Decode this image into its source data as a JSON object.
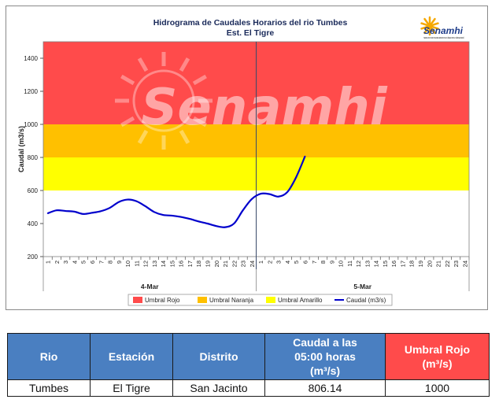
{
  "chart_data": {
    "type": "line",
    "title": "Hidrograma de Caudales Horarios del rio Tumbes",
    "subtitle": "Est. El Tigre",
    "ylabel": "Caudal  (m3/s)",
    "ylim": [
      200,
      1500
    ],
    "yticks": [
      200,
      400,
      600,
      800,
      1000,
      1200,
      1400
    ],
    "day_groups": [
      {
        "label": "4-Mar",
        "hours": [
          "1",
          "2",
          "3",
          "4",
          "5",
          "6",
          "7",
          "8",
          "9",
          "10",
          "11",
          "12",
          "13",
          "14",
          "15",
          "16",
          "17",
          "18",
          "19",
          "20",
          "21",
          "22",
          "23",
          "24"
        ]
      },
      {
        "label": "5-Mar",
        "hours": [
          "1",
          "2",
          "3",
          "4",
          "5",
          "6",
          "7",
          "8",
          "9",
          "10",
          "11",
          "12",
          "13",
          "14",
          "15",
          "16",
          "17",
          "18",
          "19",
          "20",
          "21",
          "22",
          "23",
          "24"
        ]
      }
    ],
    "bands": [
      {
        "name": "Umbral Rojo",
        "from": 1000,
        "to": 1500,
        "color": "#ff4b4b"
      },
      {
        "name": "Umbral Naranja",
        "from": 800,
        "to": 1000,
        "color": "#ffc000"
      },
      {
        "name": "Umbral Amarillo",
        "from": 600,
        "to": 800,
        "color": "#ffff00"
      }
    ],
    "series": [
      {
        "name": "Caudal (m3/s)",
        "color": "#0000cc",
        "values": [
          462,
          480,
          476,
          472,
          458,
          465,
          475,
          495,
          530,
          545,
          535,
          505,
          470,
          452,
          448,
          440,
          428,
          413,
          400,
          385,
          378,
          400,
          480,
          548,
          580,
          578,
          563,
          590,
          680,
          806.14
        ]
      }
    ],
    "legend": {
      "position": "bottom",
      "items": [
        "Umbral Rojo",
        "Umbral Naranja",
        "Umbral Amarillo",
        "Caudal (m3/s)"
      ]
    },
    "grid": false
  },
  "logo": {
    "text": "Senamhi",
    "sub": "SERVICIO NACIONAL DE METEOROLOGÍA E HIDROLOGÍA DEL PERÚ"
  },
  "watermark": {
    "text": "Senamhi"
  },
  "table": {
    "headers": [
      {
        "lines": [
          "Rio"
        ]
      },
      {
        "lines": [
          "Estación"
        ]
      },
      {
        "lines": [
          "Distrito"
        ]
      },
      {
        "lines": [
          "Caudal a las",
          "05:00 horas",
          "(m³/s)"
        ]
      },
      {
        "lines": [
          "Umbral Rojo",
          "(m³/s)"
        ]
      }
    ],
    "row": [
      "Tumbes",
      "El Tigre",
      "San Jacinto",
      "806.14",
      "1000"
    ]
  }
}
